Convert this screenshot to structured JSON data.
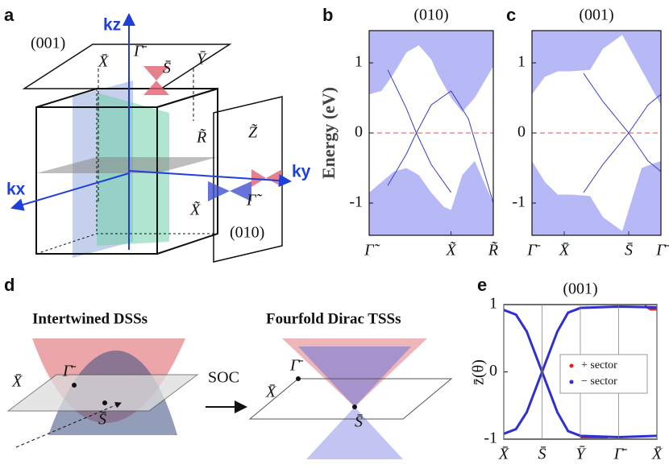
{
  "panel_labels": [
    "a",
    "b",
    "c",
    "d",
    "e"
  ],
  "diagram_a": {
    "top_plane": "(001)",
    "side_plane": "(010)",
    "kz": "kz",
    "kx": "kx",
    "ky": "ky",
    "top_points": [
      "X̄",
      "Γ̄",
      "S̄",
      "Ȳ"
    ],
    "bulk_points": [
      "R̃",
      "Z̃",
      "Γ̃",
      "X̃"
    ]
  },
  "diagram_d": {
    "left_title": "Intertwined DSSs",
    "right_title": "Fourfold Dirac TSSs",
    "arrow": "SOC",
    "left_points": [
      "X̄",
      "Γ̄",
      "S̄"
    ],
    "right_points": [
      "X̄",
      "Γ̄",
      "S̄"
    ]
  },
  "chart_data": [
    {
      "type": "band",
      "title": "(010)",
      "ylabel": "Energy (eV)",
      "xlim": [
        0,
        1
      ],
      "ylim": [
        -1.46,
        1.46
      ],
      "xticks": [
        {
          "value": 0,
          "label": "Γ̃"
        },
        {
          "value": 0.66,
          "label": "X̃"
        },
        {
          "value": 1,
          "label": "R̃"
        }
      ],
      "yticks": [
        -1,
        0,
        1
      ],
      "hline": 0,
      "hline_color": "#e05050",
      "series": [
        {
          "color": "#7b7ff0",
          "fill": "above",
          "x": [
            0,
            0.1,
            0.2,
            0.3,
            0.4,
            0.5,
            0.55,
            0.66,
            0.75,
            0.85,
            1
          ],
          "values": [
            0.55,
            0.6,
            0.85,
            1.15,
            1.25,
            1.05,
            0.85,
            0.5,
            0.3,
            0.5,
            0.95
          ]
        },
        {
          "color": "#7b7ff0",
          "fill": "below",
          "x": [
            0,
            0.1,
            0.2,
            0.3,
            0.4,
            0.5,
            0.6,
            0.66,
            0.75,
            0.85,
            1
          ],
          "values": [
            -0.85,
            -0.7,
            -0.55,
            -0.5,
            -0.6,
            -0.85,
            -1.05,
            -1.1,
            -0.6,
            -0.4,
            -1.0
          ]
        },
        {
          "color": "#3a3fc0",
          "x": [
            0.15,
            0.3,
            0.38,
            0.5,
            0.66
          ],
          "values": [
            0.9,
            0.35,
            0.0,
            -0.45,
            -0.85
          ]
        },
        {
          "color": "#3a3fc0",
          "x": [
            0.15,
            0.3,
            0.38,
            0.5,
            0.66,
            0.8,
            1
          ],
          "values": [
            -0.75,
            -0.3,
            0.0,
            0.4,
            0.6,
            0.2,
            -1.0
          ]
        }
      ]
    },
    {
      "type": "band",
      "title": "(001)",
      "xlim": [
        0,
        1
      ],
      "ylim": [
        -1.46,
        1.46
      ],
      "xticks": [
        {
          "value": 0,
          "label": "Γ̄"
        },
        {
          "value": 0.25,
          "label": "X̄"
        },
        {
          "value": 0.75,
          "label": "S̄"
        },
        {
          "value": 1,
          "label": "Γ̄"
        }
      ],
      "yticks": [
        -1,
        0,
        1
      ],
      "hline": 0,
      "hline_color": "#e05050",
      "series": [
        {
          "color": "#7b7ff0",
          "fill": "above",
          "x": [
            0,
            0.1,
            0.2,
            0.3,
            0.45,
            0.55,
            0.7,
            0.85,
            1
          ],
          "values": [
            0.55,
            0.8,
            0.88,
            0.88,
            0.9,
            1.2,
            1.4,
            0.9,
            0.4
          ]
        },
        {
          "color": "#7b7ff0",
          "fill": "below",
          "x": [
            0,
            0.1,
            0.2,
            0.3,
            0.45,
            0.55,
            0.7,
            0.85,
            1
          ],
          "values": [
            -0.4,
            -0.7,
            -0.88,
            -0.88,
            -0.9,
            -1.2,
            -1.4,
            -0.5,
            -0.4
          ]
        },
        {
          "color": "#3a3fc0",
          "x": [
            0.4,
            0.55,
            0.75,
            0.9,
            1
          ],
          "values": [
            0.85,
            0.45,
            0.0,
            -0.4,
            -0.55
          ]
        },
        {
          "color": "#3a3fc0",
          "x": [
            0.4,
            0.55,
            0.75,
            0.9,
            1
          ],
          "values": [
            -0.85,
            -0.45,
            0.0,
            0.4,
            0.55
          ]
        }
      ]
    },
    {
      "type": "line",
      "title": "(001)",
      "ylabel": "z̄(θ)",
      "xlim": [
        0,
        1
      ],
      "ylim": [
        -1,
        1
      ],
      "grid": true,
      "xticks": [
        {
          "value": 0,
          "label": "X̄"
        },
        {
          "value": 0.25,
          "label": "S̄"
        },
        {
          "value": 0.5,
          "label": "Ȳ"
        },
        {
          "value": 0.75,
          "label": "Γ̄"
        },
        {
          "value": 1,
          "label": "X̄"
        }
      ],
      "yticks": [
        -1,
        0,
        1
      ],
      "legend": "right",
      "series": [
        {
          "name": "+ sector",
          "color": "#e02020",
          "x": [
            0.5,
            0.6,
            0.68,
            null,
            0.92,
            0.96,
            1
          ],
          "values": [
            -0.97,
            -0.97,
            -0.97,
            null,
            0.98,
            0.93,
            0.93
          ]
        },
        {
          "name": "− sector",
          "color": "#3030d0",
          "x": [
            0,
            0.08,
            0.15,
            0.25,
            0.35,
            0.42,
            0.5,
            0.75,
            1,
            null,
            0,
            0.08,
            0.15,
            0.25,
            0.35,
            0.42,
            0.5,
            0.75,
            1
          ],
          "values": [
            0.92,
            0.85,
            0.6,
            0,
            -0.6,
            -0.88,
            -0.95,
            -0.97,
            -0.95,
            null,
            -0.92,
            -0.85,
            -0.6,
            0,
            0.6,
            0.88,
            0.95,
            0.97,
            0.96
          ]
        }
      ]
    }
  ]
}
